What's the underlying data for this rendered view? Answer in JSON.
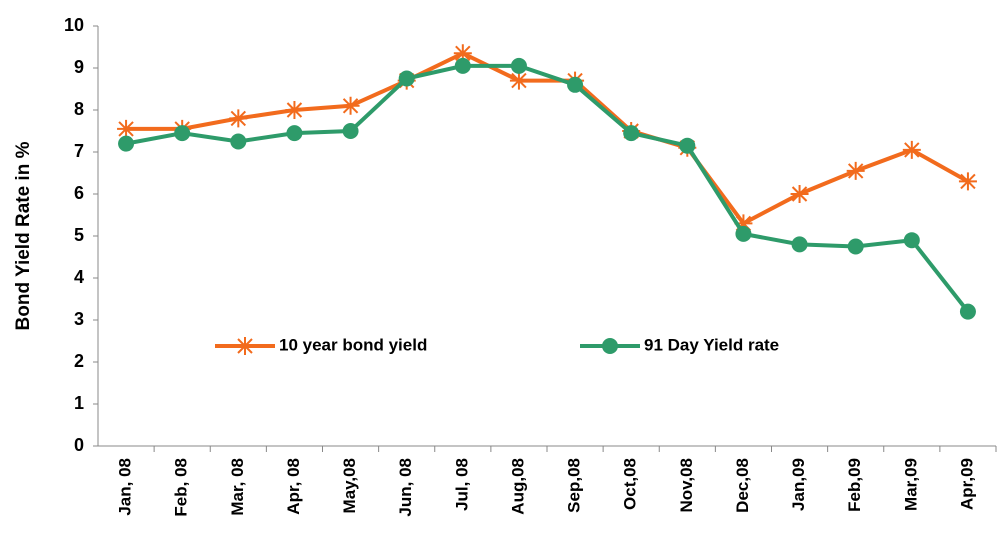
{
  "chart_data": {
    "type": "line",
    "y_label": "Bond Yield Rate in %",
    "categories": [
      "Jan, 08",
      "Feb, 08",
      "Mar, 08",
      "Apr, 08",
      "May,08",
      "Jun, 08",
      "Jul, 08",
      "Aug,08",
      "Sep,08",
      "Oct,08",
      "Nov,08",
      "Dec,08",
      "Jan,09",
      "Feb,09",
      "Mar,09",
      "Apr,09"
    ],
    "series": [
      {
        "name": "10 year bond yield",
        "color": "#f26b1d",
        "marker": "asterisk",
        "values": [
          7.55,
          7.55,
          7.8,
          8.0,
          8.1,
          8.7,
          9.35,
          8.7,
          8.7,
          7.5,
          7.1,
          5.3,
          6.0,
          6.55,
          7.05,
          6.3
        ]
      },
      {
        "name": "91 Day Yield rate",
        "color": "#2e9b6a",
        "marker": "circle",
        "values": [
          7.2,
          7.45,
          7.25,
          7.45,
          7.5,
          8.75,
          9.05,
          9.05,
          8.6,
          7.45,
          7.15,
          5.05,
          4.8,
          4.75,
          4.9,
          3.2
        ]
      }
    ],
    "ylim": [
      0,
      10
    ],
    "yticks": [
      0,
      1,
      2,
      3,
      4,
      5,
      6,
      7,
      8,
      9,
      10
    ],
    "grid": false
  }
}
